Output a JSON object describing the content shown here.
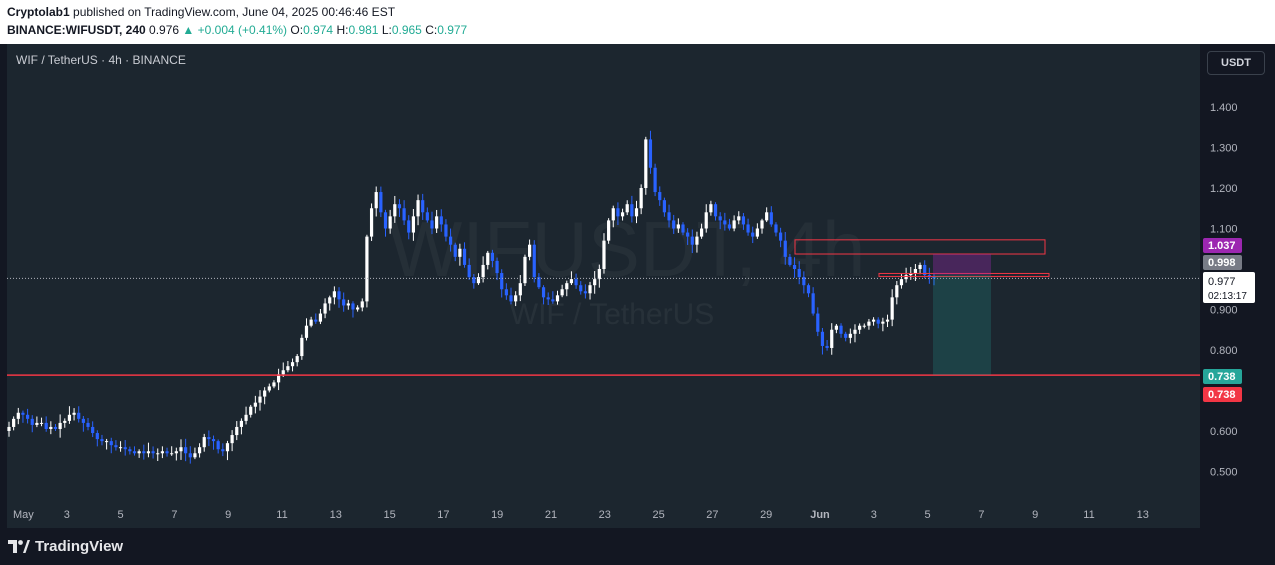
{
  "header": {
    "line1_user": "Cryptolab1",
    "line1_rest": " published on TradingView.com, June 04, 2025 00:46:46 EST",
    "symbol": "BINANCE:WIFUSDT, 240",
    "last": "0.976",
    "change": "+0.004 (+0.41%)",
    "o_label": "O:",
    "o": "0.974",
    "h_label": "H:",
    "h": "0.981",
    "l_label": "L:",
    "l": "0.965",
    "c_label": "C:",
    "c": "0.977"
  },
  "pane": {
    "symbol_desc": "WIF / TetherUS · 4h · BINANCE",
    "currency_button": "USDT",
    "watermark_big": "WIFUSDT, 4h",
    "watermark_small": "WIF / TetherUS"
  },
  "brand": {
    "name": "TradingView"
  },
  "colors": {
    "up": "#ffffff",
    "down": "#2962ff",
    "red_line": "#f23645",
    "target": "#26a69a",
    "purple": "#9c27b0"
  },
  "chart_data": {
    "type": "candlestick",
    "y_ticks": [
      "1.400",
      "1.300",
      "1.200",
      "1.100",
      "0.900",
      "0.800",
      "0.600",
      "0.500"
    ],
    "ylim": [
      0.5,
      1.4
    ],
    "x_ticks": [
      "May",
      "3",
      "5",
      "7",
      "9",
      "11",
      "13",
      "15",
      "17",
      "19",
      "21",
      "23",
      "25",
      "27",
      "29",
      "Jun",
      "3",
      "5",
      "7",
      "9",
      "11",
      "13"
    ],
    "key_prices": [
      {
        "label": "1.037",
        "color": "#9c27b0",
        "text": "#ffffff"
      },
      {
        "label": "0.998",
        "color": "#787b86",
        "text": "#ffffff"
      },
      {
        "label": "0.977",
        "color": "#ffffff",
        "text": "#131722"
      },
      {
        "label": "02:13:17",
        "color": "#ffffff",
        "text": "#131722"
      },
      {
        "label": "0.738",
        "color": "#26a69a",
        "text": "#ffffff"
      },
      {
        "label": "0.738",
        "color": "#f23645",
        "text": "#ffffff"
      }
    ],
    "horizontal_line": 0.738,
    "last_price": 0.977,
    "resistance_zone": [
      1.037,
      1.072
    ],
    "short_position": {
      "entry": 0.986,
      "stop": 1.037,
      "target": 0.738
    },
    "closes": [
      0.61,
      0.63,
      0.645,
      0.64,
      0.63,
      0.615,
      0.62,
      0.62,
      0.605,
      0.61,
      0.605,
      0.62,
      0.625,
      0.64,
      0.645,
      0.63,
      0.62,
      0.61,
      0.595,
      0.58,
      0.575,
      0.575,
      0.565,
      0.56,
      0.56,
      0.555,
      0.55,
      0.545,
      0.55,
      0.545,
      0.55,
      0.545,
      0.545,
      0.55,
      0.545,
      0.545,
      0.55,
      0.56,
      0.545,
      0.535,
      0.545,
      0.56,
      0.585,
      0.58,
      0.575,
      0.555,
      0.55,
      0.57,
      0.59,
      0.61,
      0.625,
      0.64,
      0.66,
      0.67,
      0.685,
      0.7,
      0.71,
      0.72,
      0.74,
      0.75,
      0.76,
      0.77,
      0.785,
      0.83,
      0.86,
      0.875,
      0.87,
      0.89,
      0.915,
      0.93,
      0.945,
      0.925,
      0.91,
      0.915,
      0.9,
      0.905,
      0.92,
      1.08,
      1.15,
      1.19,
      1.14,
      1.1,
      1.13,
      1.16,
      1.15,
      1.12,
      1.09,
      1.13,
      1.17,
      1.14,
      1.12,
      1.1,
      1.13,
      1.11,
      1.08,
      1.06,
      1.03,
      1.05,
      1.01,
      0.98,
      0.965,
      0.98,
      1.01,
      1.04,
      1.02,
      0.99,
      0.95,
      0.935,
      0.92,
      0.935,
      0.965,
      1.03,
      1.06,
      0.98,
      0.955,
      0.93,
      0.925,
      0.92,
      0.935,
      0.95,
      0.965,
      0.975,
      0.96,
      0.945,
      0.94,
      0.96,
      0.975,
      1.0,
      1.07,
      1.12,
      1.15,
      1.13,
      1.14,
      1.16,
      1.13,
      1.15,
      1.2,
      1.32,
      1.25,
      1.19,
      1.17,
      1.14,
      1.12,
      1.1,
      1.11,
      1.09,
      1.08,
      1.06,
      1.08,
      1.1,
      1.14,
      1.16,
      1.13,
      1.12,
      1.11,
      1.1,
      1.12,
      1.13,
      1.11,
      1.09,
      1.08,
      1.1,
      1.12,
      1.14,
      1.11,
      1.09,
      1.07,
      1.03,
      1.01,
      1.0,
      0.98,
      0.96,
      0.94,
      0.89,
      0.845,
      0.81,
      0.805,
      0.85,
      0.86,
      0.84,
      0.83,
      0.84,
      0.85,
      0.86,
      0.86,
      0.87,
      0.875,
      0.865,
      0.87,
      0.875,
      0.93,
      0.96,
      0.975,
      0.985,
      0.99,
      1.0,
      1.01,
      0.985,
      0.98,
      0.977
    ]
  }
}
